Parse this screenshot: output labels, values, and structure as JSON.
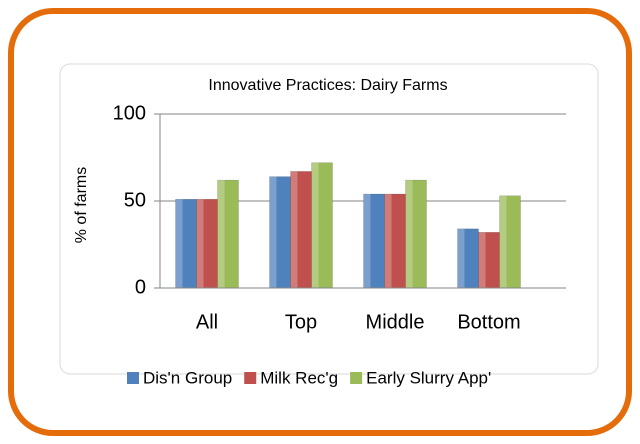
{
  "chart_data": {
    "type": "bar",
    "title": "Innovative Practices: Dairy Farms",
    "y_label": "% of farms",
    "categories": [
      "All",
      "Top",
      "Middle",
      "Bottom"
    ],
    "series": [
      {
        "name": "Dis'n Group",
        "color": "#4f81bd",
        "values": [
          51,
          64,
          54,
          34
        ]
      },
      {
        "name": "Milk Rec'g",
        "color": "#c0504d",
        "values": [
          51,
          67,
          54,
          32
        ]
      },
      {
        "name": "Early Slurry App'",
        "color": "#9bbb59",
        "values": [
          62,
          72,
          62,
          53
        ]
      }
    ],
    "ylim": [
      0,
      100
    ],
    "yticks": [
      0,
      50,
      100
    ],
    "grid": true,
    "legend": "bottom"
  }
}
